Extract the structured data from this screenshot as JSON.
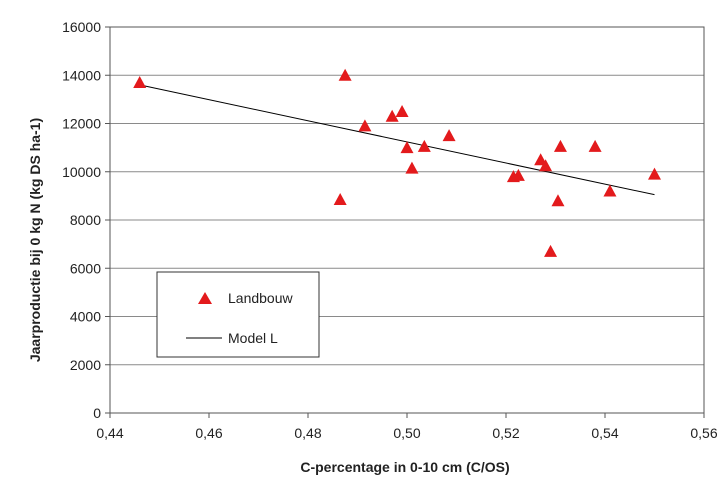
{
  "chart_data": {
    "type": "scatter",
    "xlabel": "C-percentage  in 0-10 cm (C/OS)",
    "ylabel": "Jaarproductie bij 0 kg N (kg DS ha-1)",
    "xlim": [
      0.44,
      0.56
    ],
    "ylim": [
      0,
      16000
    ],
    "x_ticks": [
      0.44,
      0.46,
      0.48,
      0.5,
      0.52,
      0.54,
      0.56
    ],
    "x_tick_labels": [
      "0,44",
      "0,46",
      "0,48",
      "0,50",
      "0,52",
      "0,54",
      "0,56"
    ],
    "y_ticks": [
      0,
      2000,
      4000,
      6000,
      8000,
      10000,
      12000,
      14000,
      16000
    ],
    "y_tick_labels": [
      "0",
      "2000",
      "4000",
      "6000",
      "8000",
      "10000",
      "12000",
      "14000",
      "16000"
    ],
    "grid": "horizontal",
    "legend_position": "lower-left",
    "series": [
      {
        "name": "Landbouw",
        "kind": "scatter",
        "marker": "triangle",
        "color": "#e31a1c",
        "points": [
          {
            "x": 0.446,
            "y": 13700
          },
          {
            "x": 0.4865,
            "y": 8850
          },
          {
            "x": 0.4875,
            "y": 14000
          },
          {
            "x": 0.4915,
            "y": 11900
          },
          {
            "x": 0.497,
            "y": 12300
          },
          {
            "x": 0.499,
            "y": 12500
          },
          {
            "x": 0.5,
            "y": 11000
          },
          {
            "x": 0.501,
            "y": 10150
          },
          {
            "x": 0.5035,
            "y": 11050
          },
          {
            "x": 0.5085,
            "y": 11500
          },
          {
            "x": 0.5215,
            "y": 9800
          },
          {
            "x": 0.5225,
            "y": 9850
          },
          {
            "x": 0.527,
            "y": 10500
          },
          {
            "x": 0.528,
            "y": 10250
          },
          {
            "x": 0.529,
            "y": 6700
          },
          {
            "x": 0.5305,
            "y": 8800
          },
          {
            "x": 0.531,
            "y": 11050
          },
          {
            "x": 0.538,
            "y": 11050
          },
          {
            "x": 0.541,
            "y": 9200
          },
          {
            "x": 0.55,
            "y": 9900
          }
        ]
      },
      {
        "name": "Model L",
        "kind": "line",
        "color": "#000000",
        "points": [
          {
            "x": 0.446,
            "y": 13600
          },
          {
            "x": 0.55,
            "y": 9050
          }
        ]
      }
    ]
  }
}
